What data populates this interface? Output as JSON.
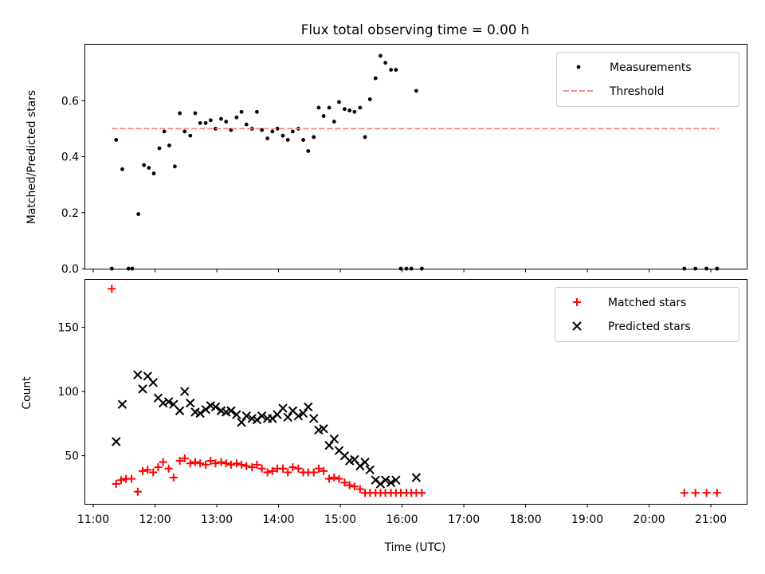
{
  "figure": {
    "title": "Flux total observing time = 0.00 h"
  },
  "chart_data": [
    {
      "type": "scatter",
      "panel": "top",
      "ylabel": "Matched/Predicted stars",
      "ylim": [
        0,
        0.8
      ],
      "yticks": [
        0.0,
        0.2,
        0.4,
        0.6
      ],
      "ytick_labels": [
        "0.0",
        "0.2",
        "0.4",
        "0.6"
      ],
      "x_unit": "time (hours UTC)",
      "xlim": [
        10.87,
        21.58
      ],
      "grid": false,
      "legend": {
        "placement": "top-right"
      },
      "series": [
        {
          "name": "Measurements",
          "marker": "dot",
          "color": "#000000",
          "points": [
            [
              11.3,
              0.0
            ],
            [
              11.37,
              0.46
            ],
            [
              11.47,
              0.355
            ],
            [
              11.57,
              0.0
            ],
            [
              11.63,
              0.0
            ],
            [
              11.73,
              0.195
            ],
            [
              11.82,
              0.37
            ],
            [
              11.9,
              0.36
            ],
            [
              11.98,
              0.34
            ],
            [
              12.07,
              0.43
            ],
            [
              12.15,
              0.49
            ],
            [
              12.23,
              0.44
            ],
            [
              12.32,
              0.365
            ],
            [
              12.4,
              0.555
            ],
            [
              12.48,
              0.49
            ],
            [
              12.57,
              0.475
            ],
            [
              12.65,
              0.555
            ],
            [
              12.73,
              0.52
            ],
            [
              12.82,
              0.52
            ],
            [
              12.9,
              0.53
            ],
            [
              12.98,
              0.5
            ],
            [
              13.07,
              0.535
            ],
            [
              13.15,
              0.525
            ],
            [
              13.23,
              0.495
            ],
            [
              13.32,
              0.54
            ],
            [
              13.4,
              0.56
            ],
            [
              13.48,
              0.515
            ],
            [
              13.57,
              0.5
            ],
            [
              13.65,
              0.56
            ],
            [
              13.73,
              0.495
            ],
            [
              13.82,
              0.465
            ],
            [
              13.9,
              0.49
            ],
            [
              13.98,
              0.5
            ],
            [
              14.07,
              0.475
            ],
            [
              14.15,
              0.46
            ],
            [
              14.23,
              0.49
            ],
            [
              14.32,
              0.5
            ],
            [
              14.4,
              0.46
            ],
            [
              14.48,
              0.42
            ],
            [
              14.57,
              0.47
            ],
            [
              14.65,
              0.575
            ],
            [
              14.73,
              0.545
            ],
            [
              14.82,
              0.575
            ],
            [
              14.9,
              0.525
            ],
            [
              14.98,
              0.595
            ],
            [
              15.07,
              0.57
            ],
            [
              15.15,
              0.565
            ],
            [
              15.23,
              0.56
            ],
            [
              15.32,
              0.575
            ],
            [
              15.4,
              0.47
            ],
            [
              15.48,
              0.605
            ],
            [
              15.57,
              0.68
            ],
            [
              15.65,
              0.76
            ],
            [
              15.73,
              0.735
            ],
            [
              15.82,
              0.71
            ],
            [
              15.9,
              0.71
            ],
            [
              15.98,
              0.0
            ],
            [
              16.07,
              0.0
            ],
            [
              16.15,
              0.0
            ],
            [
              16.23,
              0.635
            ],
            [
              16.32,
              0.0
            ],
            [
              20.57,
              0.0
            ],
            [
              20.75,
              0.0
            ],
            [
              20.93,
              0.0
            ],
            [
              21.1,
              0.0
            ]
          ]
        },
        {
          "name": "Threshold",
          "marker": "dashed-line",
          "color": "#ff8080",
          "points": [
            [
              11.3,
              0.5
            ],
            [
              21.13,
              0.5
            ]
          ]
        }
      ]
    },
    {
      "type": "scatter",
      "panel": "bottom",
      "xlabel": "Time (UTC)",
      "ylabel": "Count",
      "ylim": [
        12.5,
        187
      ],
      "yticks": [
        50,
        100,
        150
      ],
      "ytick_labels": [
        "50",
        "100",
        "150"
      ],
      "x_unit": "time (hours UTC)",
      "xlim": [
        10.87,
        21.58
      ],
      "xticks": [
        11,
        12,
        13,
        14,
        15,
        16,
        17,
        18,
        19,
        20,
        21
      ],
      "xtick_labels": [
        "11:00",
        "12:00",
        "13:00",
        "14:00",
        "15:00",
        "16:00",
        "17:00",
        "18:00",
        "19:00",
        "20:00",
        "21:00"
      ],
      "grid": false,
      "legend": {
        "placement": "top-right"
      },
      "series": [
        {
          "name": "Matched stars",
          "marker": "plus",
          "color": "#ff0000",
          "points": [
            [
              11.3,
              180
            ],
            [
              11.37,
              28
            ],
            [
              11.45,
              31
            ],
            [
              11.53,
              32
            ],
            [
              11.62,
              32
            ],
            [
              11.72,
              22
            ],
            [
              11.8,
              38
            ],
            [
              11.88,
              39
            ],
            [
              11.97,
              37
            ],
            [
              12.05,
              41
            ],
            [
              12.13,
              45
            ],
            [
              12.22,
              40
            ],
            [
              12.3,
              33
            ],
            [
              12.4,
              46
            ],
            [
              12.48,
              48
            ],
            [
              12.57,
              44
            ],
            [
              12.65,
              45
            ],
            [
              12.73,
              44
            ],
            [
              12.82,
              43
            ],
            [
              12.9,
              46
            ],
            [
              12.98,
              44
            ],
            [
              13.07,
              45
            ],
            [
              13.15,
              44
            ],
            [
              13.23,
              43
            ],
            [
              13.32,
              44
            ],
            [
              13.4,
              43
            ],
            [
              13.48,
              42
            ],
            [
              13.57,
              41
            ],
            [
              13.65,
              43
            ],
            [
              13.73,
              40
            ],
            [
              13.82,
              37
            ],
            [
              13.9,
              38
            ],
            [
              13.98,
              40
            ],
            [
              14.07,
              40
            ],
            [
              14.15,
              37
            ],
            [
              14.23,
              41
            ],
            [
              14.32,
              40
            ],
            [
              14.4,
              37
            ],
            [
              14.48,
              37
            ],
            [
              14.57,
              37
            ],
            [
              14.65,
              40
            ],
            [
              14.73,
              38
            ],
            [
              14.82,
              32
            ],
            [
              14.9,
              33
            ],
            [
              14.98,
              32
            ],
            [
              15.07,
              29
            ],
            [
              15.15,
              27
            ],
            [
              15.23,
              26
            ],
            [
              15.32,
              24
            ],
            [
              15.4,
              21
            ],
            [
              15.48,
              21
            ],
            [
              15.57,
              21
            ],
            [
              15.65,
              21
            ],
            [
              15.73,
              21
            ],
            [
              15.82,
              21
            ],
            [
              15.9,
              21
            ],
            [
              15.98,
              21
            ],
            [
              16.07,
              21
            ],
            [
              16.15,
              21
            ],
            [
              16.23,
              21
            ],
            [
              16.32,
              21
            ],
            [
              20.57,
              21
            ],
            [
              20.75,
              21
            ],
            [
              20.93,
              21
            ],
            [
              21.1,
              21
            ]
          ]
        },
        {
          "name": "Predicted stars",
          "marker": "x",
          "color": "#000000",
          "points": [
            [
              11.37,
              61
            ],
            [
              11.47,
              90
            ],
            [
              11.72,
              113
            ],
            [
              11.8,
              102
            ],
            [
              11.88,
              112
            ],
            [
              11.97,
              107
            ],
            [
              12.05,
              95
            ],
            [
              12.13,
              91
            ],
            [
              12.22,
              92
            ],
            [
              12.3,
              90
            ],
            [
              12.4,
              85
            ],
            [
              12.48,
              100
            ],
            [
              12.57,
              91
            ],
            [
              12.65,
              84
            ],
            [
              12.73,
              83
            ],
            [
              12.82,
              86
            ],
            [
              12.9,
              89
            ],
            [
              12.98,
              88
            ],
            [
              13.07,
              85
            ],
            [
              13.15,
              84
            ],
            [
              13.23,
              85
            ],
            [
              13.32,
              82
            ],
            [
              13.4,
              76
            ],
            [
              13.48,
              81
            ],
            [
              13.57,
              79
            ],
            [
              13.65,
              78
            ],
            [
              13.73,
              81
            ],
            [
              13.82,
              79
            ],
            [
              13.9,
              79
            ],
            [
              13.98,
              82
            ],
            [
              14.07,
              87
            ],
            [
              14.15,
              80
            ],
            [
              14.23,
              85
            ],
            [
              14.32,
              81
            ],
            [
              14.4,
              83
            ],
            [
              14.48,
              88
            ],
            [
              14.57,
              79
            ],
            [
              14.65,
              70
            ],
            [
              14.73,
              71
            ],
            [
              14.82,
              58
            ],
            [
              14.9,
              63
            ],
            [
              14.98,
              54
            ],
            [
              15.07,
              50
            ],
            [
              15.15,
              46
            ],
            [
              15.23,
              47
            ],
            [
              15.32,
              42
            ],
            [
              15.4,
              45
            ],
            [
              15.48,
              39
            ],
            [
              15.57,
              31
            ],
            [
              15.65,
              28
            ],
            [
              15.73,
              31
            ],
            [
              15.82,
              29
            ],
            [
              15.9,
              31
            ],
            [
              16.23,
              33
            ]
          ]
        }
      ]
    }
  ]
}
